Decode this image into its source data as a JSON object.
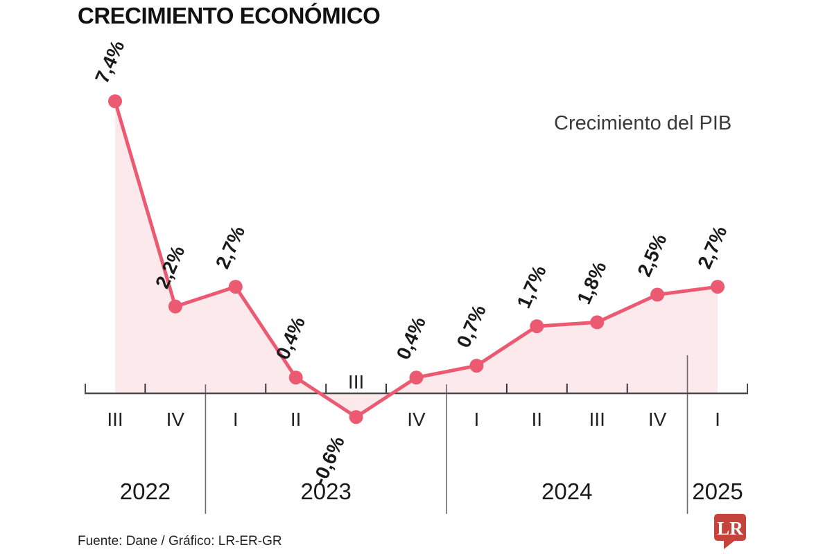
{
  "title": "CRECIMIENTO ECONÓMICO",
  "legend": "Crecimiento del PIB",
  "source": "Fuente: Dane / Gráfico: LR-ER-GR",
  "logo_text": "LR",
  "colors": {
    "line": "#EC5A72",
    "fill": "#FBE9EC",
    "axis": "#4A4A4A",
    "tick": "#333333",
    "separator": "#6B6B6B",
    "label": "#1A1A1A",
    "logo": "#C4433D"
  },
  "chart_data": {
    "type": "area",
    "title": "CRECIMIENTO ECONÓMICO",
    "legend": "Crecimiento del PIB",
    "legend_position": "top-right",
    "unit": "%",
    "categories": [
      "III",
      "IV",
      "I",
      "II",
      "III",
      "IV",
      "I",
      "II",
      "III",
      "IV",
      "I"
    ],
    "values": [
      7.4,
      2.2,
      2.7,
      0.4,
      -0.6,
      0.4,
      0.7,
      1.7,
      1.8,
      2.5,
      2.7
    ],
    "point_labels": [
      "7,4%",
      "2,2%",
      "2,7%",
      "0,4%",
      "-0,6%",
      "0,4%",
      "0,7%",
      "1,7%",
      "1,8%",
      "2,5%",
      "2,7%"
    ],
    "years": [
      {
        "label": "2022",
        "quarters": 2
      },
      {
        "label": "2023",
        "quarters": 4
      },
      {
        "label": "2024",
        "quarters": 4
      },
      {
        "label": "2025",
        "quarters": 1
      }
    ],
    "ylim": [
      -1,
      8
    ],
    "grid": false
  }
}
